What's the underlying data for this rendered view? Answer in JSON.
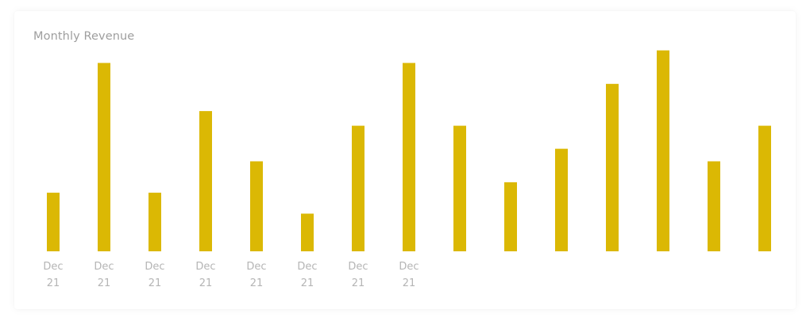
{
  "chart_data": {
    "type": "bar",
    "title": "Monthly Revenue",
    "categories": [
      [
        "Dec",
        "21"
      ],
      [
        "Dec",
        "21"
      ],
      [
        "Dec",
        "21"
      ],
      [
        "Dec",
        "21"
      ],
      [
        "Dec",
        "21"
      ],
      [
        "Dec",
        "21"
      ],
      [
        "Dec",
        "21"
      ],
      [
        "Dec",
        "21"
      ],
      [
        "",
        ""
      ],
      [
        "",
        ""
      ],
      [
        "",
        ""
      ],
      [
        "",
        ""
      ],
      [
        "",
        ""
      ],
      [
        "",
        ""
      ],
      [
        "",
        ""
      ]
    ],
    "values": [
      28,
      90,
      28,
      67,
      43,
      18,
      60,
      90,
      60,
      33,
      49,
      80,
      96,
      43,
      60
    ],
    "ylim": [
      0,
      100
    ],
    "grid": false,
    "legend": "none",
    "bar_color": "#dbb804"
  }
}
